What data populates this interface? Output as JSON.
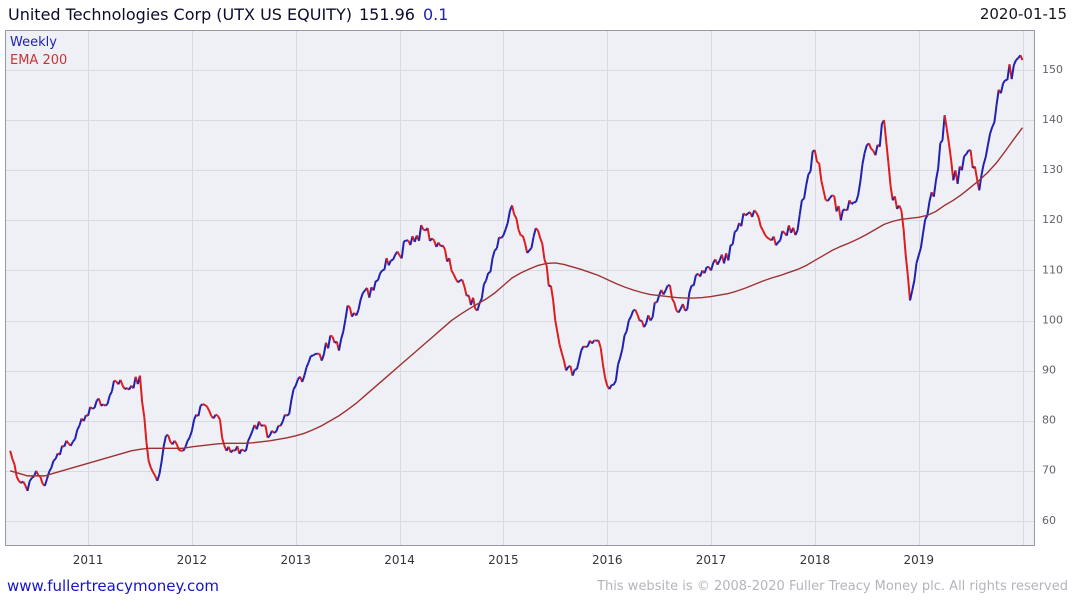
{
  "header": {
    "title": "United Technologies Corp (UTX US EQUITY)",
    "price": "151.96",
    "change": "0.1",
    "date": "2020-01-15"
  },
  "legend": {
    "series_label": "Weekly",
    "overlay_label": "EMA 200"
  },
  "footer": {
    "site_link": "www.fullertreacymoney.com",
    "copyright": "This website is © 2008-2020 Fuller Treacy Money plc. All rights reserved"
  },
  "colors": {
    "up": "#2021b0",
    "down": "#dd1d1d",
    "ema": "#9e3232",
    "ema_label": "#cc3333",
    "grid": "#d8dae2",
    "plot_bg": "#eff0f6",
    "border": "#9a9aa6",
    "axis_text": "#63636c",
    "year_text": "#34343c",
    "link": "#1414cc",
    "copyright": "#b4b4bc"
  },
  "chart_data": {
    "type": "line",
    "title": "United Technologies Corp (UTX US EQUITY) 151.96",
    "frequency": "Weekly",
    "overlay": "EMA 200",
    "legend_position": "top-left",
    "grid": true,
    "x_ticks": [
      2011,
      2012,
      2013,
      2014,
      2015,
      2016,
      2017,
      2018,
      2019
    ],
    "x_grid": [
      2011,
      2012,
      2013,
      2014,
      2015,
      2016,
      2017,
      2018,
      2019,
      2020
    ],
    "y_ticks": [
      60,
      70,
      80,
      90,
      100,
      110,
      120,
      130,
      140,
      150
    ],
    "x_range": [
      2010.2,
      2020.12
    ],
    "y_range": [
      55,
      158
    ],
    "x_start": 2010.25,
    "x_step": 0.08333,
    "price": [
      74,
      68,
      66,
      70,
      67,
      72,
      75,
      75,
      79,
      81,
      84,
      83,
      88,
      87,
      87,
      89,
      72,
      68,
      77,
      76,
      74,
      78,
      83,
      82,
      81,
      74,
      74,
      74,
      78,
      79,
      77,
      79,
      81,
      87,
      89,
      93,
      92,
      97,
      94,
      103,
      101,
      106,
      106,
      110,
      112,
      113,
      116,
      117,
      118,
      116,
      115,
      110,
      108,
      105,
      102,
      108,
      114,
      117,
      123,
      117,
      114,
      118,
      111,
      100,
      92,
      89,
      94,
      96,
      96,
      87,
      88,
      97,
      102,
      100,
      100,
      105,
      107,
      102,
      102,
      107,
      110,
      110,
      112,
      112,
      118,
      121,
      122,
      118,
      116,
      116,
      119,
      118,
      127,
      134,
      126,
      125,
      120,
      124,
      125,
      135,
      133,
      140,
      124,
      122,
      104,
      113,
      121,
      128,
      141,
      128,
      130,
      134,
      126,
      135,
      143,
      148,
      151,
      152
    ],
    "ema": [
      70,
      69.5,
      69,
      69,
      69,
      69.5,
      70,
      70.5,
      71,
      71.5,
      72,
      72.5,
      73,
      73.5,
      74,
      74.3,
      74.5,
      74.5,
      74.5,
      74.5,
      74.5,
      74.8,
      75,
      75.2,
      75.4,
      75.5,
      75.5,
      75.5,
      75.6,
      75.8,
      76,
      76.3,
      76.6,
      77,
      77.5,
      78.2,
      79,
      80,
      81,
      82.2,
      83.5,
      85,
      86.5,
      88,
      89.5,
      91,
      92.5,
      94,
      95.5,
      97,
      98.5,
      100,
      101.2,
      102.3,
      103.3,
      104.3,
      105.5,
      107,
      108.5,
      109.5,
      110.3,
      111,
      111.4,
      111.5,
      111.2,
      110.7,
      110.2,
      109.6,
      109,
      108.2,
      107.4,
      106.7,
      106.1,
      105.6,
      105.2,
      105,
      104.8,
      104.6,
      104.5,
      104.5,
      104.6,
      104.8,
      105.1,
      105.4,
      105.9,
      106.5,
      107.2,
      107.9,
      108.5,
      109,
      109.6,
      110.2,
      111,
      112,
      113,
      114,
      114.8,
      115.5,
      116.3,
      117.2,
      118.2,
      119.2,
      119.8,
      120.2,
      120.4,
      120.6,
      121,
      121.8,
      123,
      124,
      125.2,
      126.6,
      128,
      129.6,
      131.5,
      133.8,
      136.2,
      138.5
    ]
  }
}
